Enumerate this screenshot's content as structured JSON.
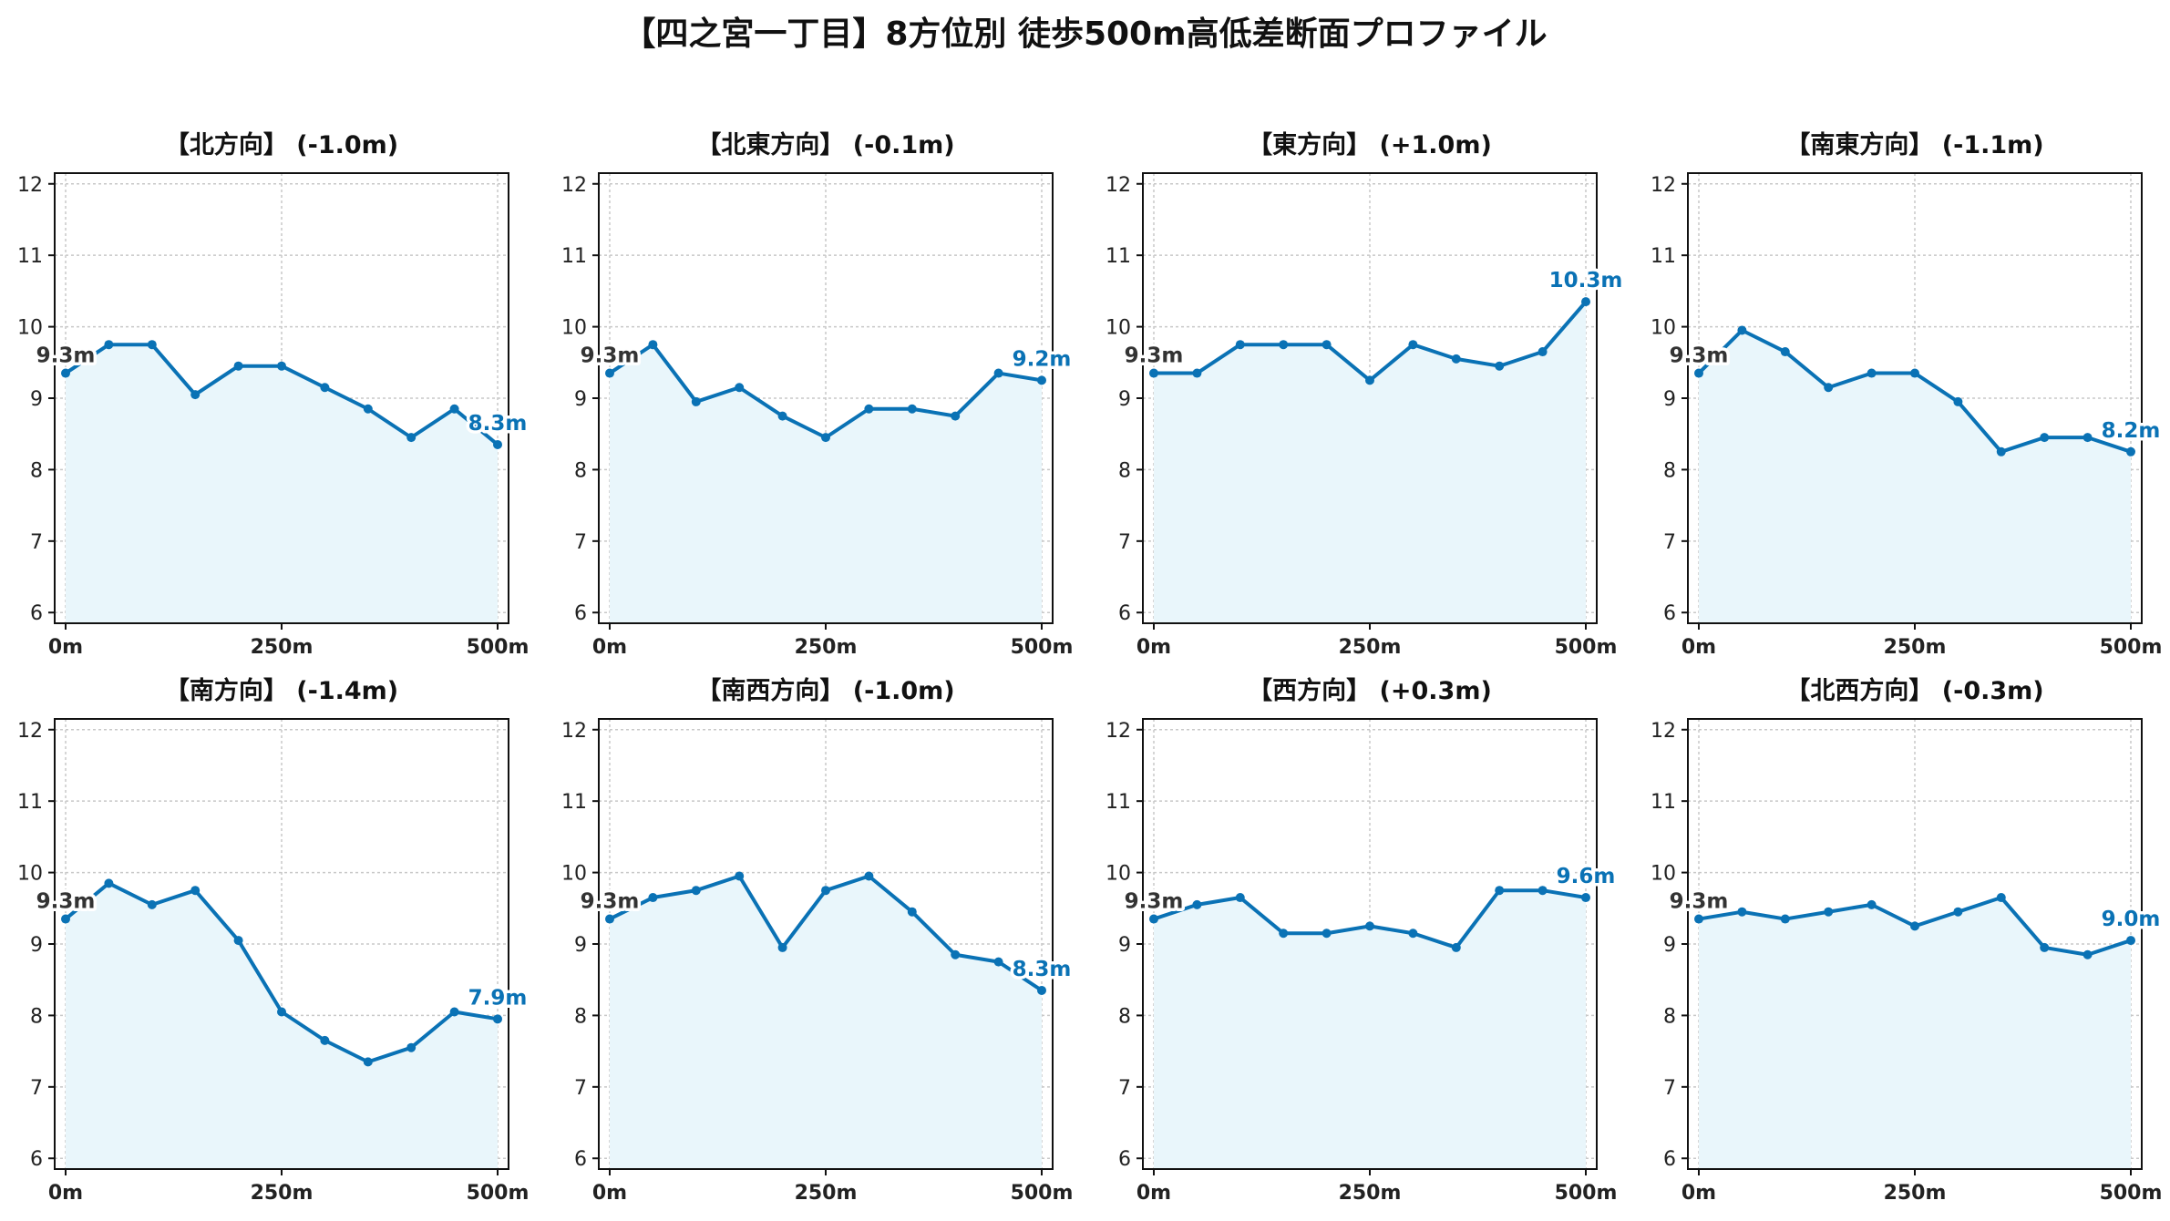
{
  "title": "【四之宮一丁目】8方位別 徒歩500m高低差断面プロファイル",
  "colors": {
    "line": "#0a72b5",
    "fill": "#e9f6fb",
    "grid": "#c8c8c8",
    "start_label": "#333333"
  },
  "x_tick_labels": [
    "0m",
    "250m",
    "500m"
  ],
  "y_tick_labels": [
    "6",
    "7",
    "8",
    "9",
    "10",
    "11",
    "12"
  ],
  "chart_data": [
    {
      "type": "line",
      "title": "【北方向】 (-1.0m)",
      "x": [
        0,
        50,
        100,
        150,
        200,
        250,
        300,
        350,
        400,
        450,
        500
      ],
      "values": [
        9.35,
        9.75,
        9.75,
        9.05,
        9.45,
        9.45,
        9.15,
        8.85,
        8.45,
        8.85,
        8.35
      ],
      "start_label": "9.3m",
      "end_label": "8.3m",
      "xlim": [
        0,
        500
      ],
      "ylim": [
        6,
        12
      ],
      "grid": true
    },
    {
      "type": "line",
      "title": "【北東方向】 (-0.1m)",
      "x": [
        0,
        50,
        100,
        150,
        200,
        250,
        300,
        350,
        400,
        450,
        500
      ],
      "values": [
        9.35,
        9.75,
        8.95,
        9.15,
        8.75,
        8.45,
        8.85,
        8.85,
        8.75,
        9.35,
        9.25
      ],
      "start_label": "9.3m",
      "end_label": "9.2m",
      "xlim": [
        0,
        500
      ],
      "ylim": [
        6,
        12
      ],
      "grid": true
    },
    {
      "type": "line",
      "title": "【東方向】 (+1.0m)",
      "x": [
        0,
        50,
        100,
        150,
        200,
        250,
        300,
        350,
        400,
        450,
        500
      ],
      "values": [
        9.35,
        9.35,
        9.75,
        9.75,
        9.75,
        9.25,
        9.75,
        9.55,
        9.45,
        9.65,
        10.35
      ],
      "start_label": "9.3m",
      "end_label": "10.3m",
      "xlim": [
        0,
        500
      ],
      "ylim": [
        6,
        12
      ],
      "grid": true
    },
    {
      "type": "line",
      "title": "【南東方向】 (-1.1m)",
      "x": [
        0,
        50,
        100,
        150,
        200,
        250,
        300,
        350,
        400,
        450,
        500
      ],
      "values": [
        9.35,
        9.95,
        9.65,
        9.15,
        9.35,
        9.35,
        8.95,
        8.25,
        8.45,
        8.45,
        8.25
      ],
      "start_label": "9.3m",
      "end_label": "8.2m",
      "xlim": [
        0,
        500
      ],
      "ylim": [
        6,
        12
      ],
      "grid": true
    },
    {
      "type": "line",
      "title": "【南方向】 (-1.4m)",
      "x": [
        0,
        50,
        100,
        150,
        200,
        250,
        300,
        350,
        400,
        450,
        500
      ],
      "values": [
        9.35,
        9.85,
        9.55,
        9.75,
        9.05,
        8.05,
        7.65,
        7.35,
        7.55,
        8.05,
        7.95
      ],
      "start_label": "9.3m",
      "end_label": "7.9m",
      "xlim": [
        0,
        500
      ],
      "ylim": [
        6,
        12
      ],
      "grid": true
    },
    {
      "type": "line",
      "title": "【南西方向】 (-1.0m)",
      "x": [
        0,
        50,
        100,
        150,
        200,
        250,
        300,
        350,
        400,
        450,
        500
      ],
      "values": [
        9.35,
        9.65,
        9.75,
        9.95,
        8.95,
        9.75,
        9.95,
        9.45,
        8.85,
        8.75,
        8.35
      ],
      "start_label": "9.3m",
      "end_label": "8.3m",
      "xlim": [
        0,
        500
      ],
      "ylim": [
        6,
        12
      ],
      "grid": true
    },
    {
      "type": "line",
      "title": "【西方向】 (+0.3m)",
      "x": [
        0,
        50,
        100,
        150,
        200,
        250,
        300,
        350,
        400,
        450,
        500
      ],
      "values": [
        9.35,
        9.55,
        9.65,
        9.15,
        9.15,
        9.25,
        9.15,
        8.95,
        9.75,
        9.75,
        9.65
      ],
      "start_label": "9.3m",
      "end_label": "9.6m",
      "xlim": [
        0,
        500
      ],
      "ylim": [
        6,
        12
      ],
      "grid": true
    },
    {
      "type": "line",
      "title": "【北西方向】 (-0.3m)",
      "x": [
        0,
        50,
        100,
        150,
        200,
        250,
        300,
        350,
        400,
        450,
        500
      ],
      "values": [
        9.35,
        9.45,
        9.35,
        9.45,
        9.55,
        9.25,
        9.45,
        9.65,
        8.95,
        8.85,
        9.05
      ],
      "start_label": "9.3m",
      "end_label": "9.0m",
      "xlim": [
        0,
        500
      ],
      "ylim": [
        6,
        12
      ],
      "grid": true
    }
  ]
}
